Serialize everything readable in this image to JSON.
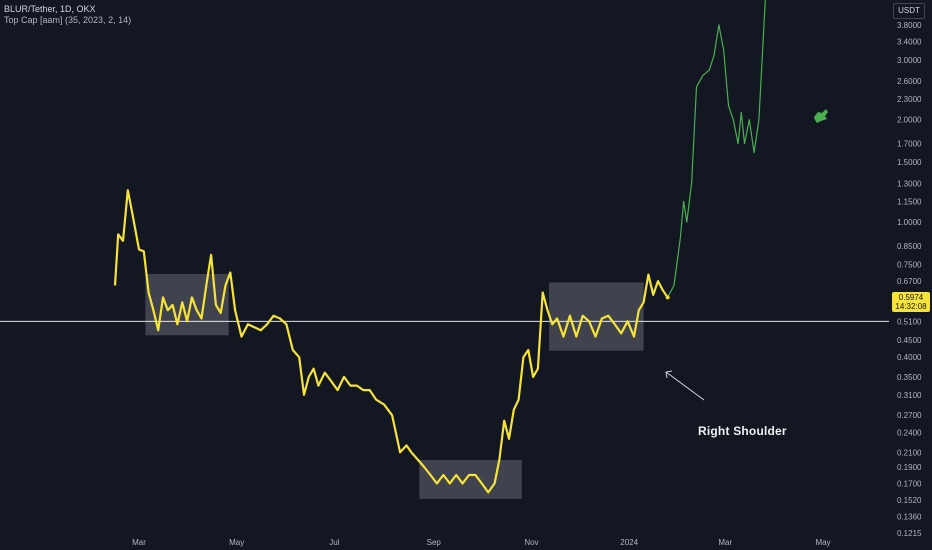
{
  "header": {
    "title": "BLUR/Tether, 1D, OKX",
    "indicator": "Top Cap [aam] (35, 2023, 2, 14)"
  },
  "price_axis": {
    "unit": "USDT",
    "last_price": "0.5974",
    "countdown": "14:32:08"
  },
  "annotation": {
    "text": "Right Shoulder"
  },
  "colors": {
    "background": "#131722",
    "price_line": "#f5e339",
    "projection_line": "#4caf50",
    "box_fill": "#787b86",
    "horizontal_line": "#ffffff"
  },
  "icons": [
    "cursor-hand-icon"
  ],
  "chart_data": {
    "type": "line",
    "scale": "log",
    "grid": false,
    "y_ticks": [
      "3.8000",
      "3.4000",
      "3.0000",
      "2.6000",
      "2.3000",
      "2.0000",
      "1.7000",
      "1.5000",
      "1.3000",
      "1.1500",
      "1.0000",
      "0.8500",
      "0.7500",
      "0.6700",
      "0.5900",
      "0.5100",
      "0.4500",
      "0.4000",
      "0.3500",
      "0.3100",
      "0.2700",
      "0.2400",
      "0.2100",
      "0.1900",
      "0.1700",
      "0.1520",
      "0.1360",
      "0.1215"
    ],
    "x_ticks": [
      "Mar",
      "May",
      "Jul",
      "Sep",
      "Nov",
      "2024",
      "Mar",
      "May"
    ],
    "horizontal_level": 0.51,
    "series": [
      {
        "x": [
          "2023-02-14",
          "2023-02-16",
          "2023-02-19",
          "2023-02-22",
          "2023-02-25",
          "2023-03-01",
          "2023-03-04",
          "2023-03-07",
          "2023-03-10",
          "2023-03-13",
          "2023-03-16",
          "2023-03-19",
          "2023-03-22",
          "2023-03-25",
          "2023-03-28",
          "2023-03-31",
          "2023-04-03",
          "2023-04-06",
          "2023-04-09",
          "2023-04-12",
          "2023-04-15",
          "2023-04-18",
          "2023-04-21",
          "2023-04-24",
          "2023-04-27",
          "2023-04-30",
          "2023-05-04",
          "2023-05-08",
          "2023-05-12",
          "2023-05-16",
          "2023-05-20",
          "2023-05-24",
          "2023-05-28",
          "2023-06-01",
          "2023-06-05",
          "2023-06-09",
          "2023-06-12",
          "2023-06-15",
          "2023-06-18",
          "2023-06-21",
          "2023-06-25",
          "2023-06-29",
          "2023-07-03",
          "2023-07-07",
          "2023-07-11",
          "2023-07-15",
          "2023-07-19",
          "2023-07-23",
          "2023-07-27",
          "2023-08-01",
          "2023-08-06",
          "2023-08-11",
          "2023-08-15",
          "2023-08-18",
          "2023-08-22",
          "2023-08-26",
          "2023-08-30",
          "2023-09-03",
          "2023-09-07",
          "2023-09-11",
          "2023-09-15",
          "2023-09-19",
          "2023-09-23",
          "2023-09-27",
          "2023-10-01",
          "2023-10-05",
          "2023-10-09",
          "2023-10-12",
          "2023-10-15",
          "2023-10-18",
          "2023-10-21",
          "2023-10-24",
          "2023-10-27",
          "2023-10-30",
          "2023-11-02",
          "2023-11-05",
          "2023-11-08",
          "2023-11-11",
          "2023-11-14",
          "2023-11-17",
          "2023-11-21",
          "2023-11-25",
          "2023-11-29",
          "2023-12-03",
          "2023-12-07",
          "2023-12-11",
          "2023-12-15",
          "2023-12-19",
          "2023-12-23",
          "2023-12-27",
          "2023-12-31",
          "2024-01-04",
          "2024-01-07",
          "2024-01-10",
          "2024-01-13",
          "2024-01-16",
          "2024-01-19",
          "2024-01-22",
          "2024-01-25"
        ],
        "values": [
          0.65,
          0.92,
          0.88,
          1.24,
          1.05,
          0.83,
          0.82,
          0.62,
          0.55,
          0.48,
          0.6,
          0.55,
          0.57,
          0.5,
          0.58,
          0.51,
          0.6,
          0.55,
          0.52,
          0.65,
          0.8,
          0.57,
          0.54,
          0.65,
          0.71,
          0.55,
          0.46,
          0.5,
          0.49,
          0.48,
          0.5,
          0.53,
          0.52,
          0.5,
          0.42,
          0.4,
          0.31,
          0.35,
          0.37,
          0.33,
          0.36,
          0.34,
          0.32,
          0.35,
          0.33,
          0.33,
          0.32,
          0.32,
          0.3,
          0.29,
          0.27,
          0.21,
          0.22,
          0.21,
          0.2,
          0.19,
          0.18,
          0.17,
          0.18,
          0.17,
          0.18,
          0.17,
          0.18,
          0.18,
          0.17,
          0.16,
          0.17,
          0.2,
          0.26,
          0.23,
          0.28,
          0.3,
          0.4,
          0.42,
          0.35,
          0.37,
          0.62,
          0.55,
          0.5,
          0.52,
          0.46,
          0.53,
          0.46,
          0.53,
          0.51,
          0.46,
          0.52,
          0.53,
          0.5,
          0.47,
          0.51,
          0.46,
          0.55,
          0.58,
          0.7,
          0.61,
          0.67,
          0.63,
          0.6
        ]
      },
      {
        "x": [
          "2024-01-25",
          "2024-01-29",
          "2024-02-02",
          "2024-02-04",
          "2024-02-06",
          "2024-02-09",
          "2024-02-12",
          "2024-02-16",
          "2024-02-20",
          "2024-02-23",
          "2024-02-26",
          "2024-02-29",
          "2024-03-03",
          "2024-03-06",
          "2024-03-09",
          "2024-03-11",
          "2024-03-13",
          "2024-03-16",
          "2024-03-19",
          "2024-03-22",
          "2024-03-26"
        ],
        "values": [
          0.6,
          0.65,
          0.9,
          1.15,
          1.0,
          1.3,
          2.5,
          2.7,
          2.8,
          3.1,
          3.8,
          3.2,
          2.2,
          2.0,
          1.7,
          2.1,
          1.7,
          2.0,
          1.6,
          2.0,
          4.5
        ]
      }
    ],
    "shaded_ranges": [
      {
        "x": [
          "2023-03-05",
          "2023-04-26"
        ],
        "y": [
          0.464,
          0.703
        ]
      },
      {
        "x": [
          "2023-08-23",
          "2023-10-26"
        ],
        "y": [
          0.1531,
          0.1993
        ]
      },
      {
        "x": [
          "2023-11-12",
          "2024-01-10"
        ],
        "y": [
          0.4181,
          0.6635
        ]
      }
    ]
  }
}
